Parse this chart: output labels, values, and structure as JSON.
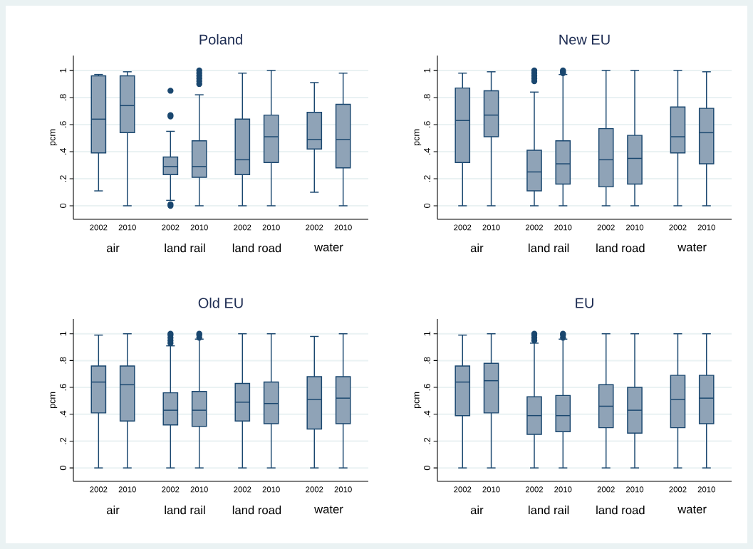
{
  "chart_data": [
    {
      "type": "box",
      "title": "Poland",
      "ylabel": "pcm",
      "categories": [
        "2002",
        "2010",
        "2002",
        "2010",
        "2002",
        "2010",
        "2002",
        "2010"
      ],
      "annotations": [
        "air",
        "land rail",
        "land road",
        "water"
      ],
      "ylim": [
        -0.1,
        1.11
      ],
      "yticks": [
        0,
        {
          "value": 0.2,
          "label": ".2"
        },
        {
          "value": 0.4,
          "label": ".4"
        },
        {
          "value": 0.6,
          "label": ".6"
        },
        {
          "value": 0.8,
          "label": ".8"
        },
        1
      ],
      "grid": "y",
      "series": [
        {
          "color": "#8fa3b7",
          "boxes": [
            {
              "low": 0.11,
              "q1": 0.39,
              "median": 0.64,
              "q3": 0.96,
              "high": 0.97
            },
            {
              "low": 0,
              "q1": 0.54,
              "median": 0.74,
              "q3": 0.96,
              "high": 0.99
            },
            {
              "low": 0.04,
              "q1": 0.23,
              "median": 0.29,
              "q3": 0.36,
              "high": 0.55,
              "outliers": [
                0.85,
                0.67,
                0.66,
                0.01,
                0
              ]
            },
            {
              "low": 0,
              "q1": 0.21,
              "median": 0.29,
              "q3": 0.48,
              "high": 0.82,
              "outliers": [
                0.9,
                0.92,
                0.94,
                0.96,
                0.98,
                1.0
              ]
            },
            {
              "low": 0,
              "q1": 0.23,
              "median": 0.34,
              "q3": 0.64,
              "high": 0.98
            },
            {
              "low": 0,
              "q1": 0.32,
              "median": 0.51,
              "q3": 0.67,
              "high": 1.0
            },
            {
              "low": 0.1,
              "q1": 0.42,
              "median": 0.49,
              "q3": 0.69,
              "high": 0.91
            },
            {
              "low": 0,
              "q1": 0.28,
              "median": 0.49,
              "q3": 0.75,
              "high": 0.98
            }
          ]
        }
      ]
    },
    {
      "type": "box",
      "title": "New EU",
      "ylabel": "pcm",
      "categories": [
        "2002",
        "2010",
        "2002",
        "2010",
        "2002",
        "2010",
        "2002",
        "2010"
      ],
      "annotations": [
        "air",
        "land rail",
        "land road",
        "water"
      ],
      "ylim": [
        -0.1,
        1.11
      ],
      "yticks": [
        0,
        {
          "value": 0.2,
          "label": ".2"
        },
        {
          "value": 0.4,
          "label": ".4"
        },
        {
          "value": 0.6,
          "label": ".6"
        },
        {
          "value": 0.8,
          "label": ".8"
        },
        1
      ],
      "grid": "y",
      "series": [
        {
          "color": "#8fa3b7",
          "boxes": [
            {
              "low": 0,
              "q1": 0.32,
              "median": 0.63,
              "q3": 0.87,
              "high": 0.98
            },
            {
              "low": 0,
              "q1": 0.51,
              "median": 0.67,
              "q3": 0.85,
              "high": 0.99
            },
            {
              "low": 0,
              "q1": 0.11,
              "median": 0.25,
              "q3": 0.41,
              "high": 0.84,
              "outliers": [
                0.92,
                0.94,
                0.96,
                0.98,
                1.0
              ]
            },
            {
              "low": 0,
              "q1": 0.16,
              "median": 0.31,
              "q3": 0.48,
              "high": 0.97,
              "outliers": [
                0.98,
                0.99,
                1.0
              ]
            },
            {
              "low": 0,
              "q1": 0.14,
              "median": 0.34,
              "q3": 0.57,
              "high": 1.0
            },
            {
              "low": 0,
              "q1": 0.16,
              "median": 0.35,
              "q3": 0.52,
              "high": 1.0
            },
            {
              "low": 0,
              "q1": 0.39,
              "median": 0.51,
              "q3": 0.73,
              "high": 1.0
            },
            {
              "low": 0,
              "q1": 0.31,
              "median": 0.54,
              "q3": 0.72,
              "high": 0.99
            }
          ]
        }
      ]
    },
    {
      "type": "box",
      "title": "Old EU",
      "ylabel": "pcm",
      "categories": [
        "2002",
        "2010",
        "2002",
        "2010",
        "2002",
        "2010",
        "2002",
        "2010"
      ],
      "annotations": [
        "air",
        "land rail",
        "land road",
        "water"
      ],
      "ylim": [
        -0.1,
        1.11
      ],
      "yticks": [
        0,
        {
          "value": 0.2,
          "label": ".2"
        },
        {
          "value": 0.4,
          "label": ".4"
        },
        {
          "value": 0.6,
          "label": ".6"
        },
        {
          "value": 0.8,
          "label": ".8"
        },
        1
      ],
      "grid": "y",
      "series": [
        {
          "color": "#8fa3b7",
          "boxes": [
            {
              "low": 0,
              "q1": 0.41,
              "median": 0.64,
              "q3": 0.76,
              "high": 0.99
            },
            {
              "low": 0,
              "q1": 0.35,
              "median": 0.62,
              "q3": 0.76,
              "high": 1.0
            },
            {
              "low": 0,
              "q1": 0.32,
              "median": 0.43,
              "q3": 0.56,
              "high": 0.91,
              "outliers": [
                0.93,
                0.95,
                0.97,
                0.99,
                1.0
              ]
            },
            {
              "low": 0,
              "q1": 0.31,
              "median": 0.43,
              "q3": 0.57,
              "high": 0.96,
              "outliers": [
                0.97,
                0.99,
                1.0
              ]
            },
            {
              "low": 0,
              "q1": 0.35,
              "median": 0.49,
              "q3": 0.63,
              "high": 1.0
            },
            {
              "low": 0,
              "q1": 0.33,
              "median": 0.48,
              "q3": 0.64,
              "high": 1.0
            },
            {
              "low": 0,
              "q1": 0.29,
              "median": 0.51,
              "q3": 0.68,
              "high": 0.98
            },
            {
              "low": 0,
              "q1": 0.33,
              "median": 0.52,
              "q3": 0.68,
              "high": 1.0
            }
          ]
        }
      ]
    },
    {
      "type": "box",
      "title": "EU",
      "ylabel": "pcm",
      "categories": [
        "2002",
        "2010",
        "2002",
        "2010",
        "2002",
        "2010",
        "2002",
        "2010"
      ],
      "annotations": [
        "air",
        "land rail",
        "land road",
        "water"
      ],
      "ylim": [
        -0.1,
        1.11
      ],
      "yticks": [
        0,
        {
          "value": 0.2,
          "label": ".2"
        },
        {
          "value": 0.4,
          "label": ".4"
        },
        {
          "value": 0.6,
          "label": ".6"
        },
        {
          "value": 0.8,
          "label": ".8"
        },
        1
      ],
      "grid": "y",
      "series": [
        {
          "color": "#8fa3b7",
          "boxes": [
            {
              "low": 0,
              "q1": 0.39,
              "median": 0.64,
              "q3": 0.76,
              "high": 0.99
            },
            {
              "low": 0,
              "q1": 0.41,
              "median": 0.65,
              "q3": 0.78,
              "high": 1.0
            },
            {
              "low": 0,
              "q1": 0.25,
              "median": 0.39,
              "q3": 0.53,
              "high": 0.93,
              "outliers": [
                0.95,
                0.97,
                0.99,
                1.0
              ]
            },
            {
              "low": 0,
              "q1": 0.27,
              "median": 0.39,
              "q3": 0.54,
              "high": 0.96,
              "outliers": [
                0.97,
                0.99,
                1.0
              ]
            },
            {
              "low": 0,
              "q1": 0.3,
              "median": 0.46,
              "q3": 0.62,
              "high": 1.0
            },
            {
              "low": 0,
              "q1": 0.26,
              "median": 0.43,
              "q3": 0.6,
              "high": 1.0
            },
            {
              "low": 0,
              "q1": 0.3,
              "median": 0.51,
              "q3": 0.69,
              "high": 1.0
            },
            {
              "low": 0,
              "q1": 0.33,
              "median": 0.52,
              "q3": 0.69,
              "high": 1.0
            }
          ]
        }
      ]
    }
  ]
}
